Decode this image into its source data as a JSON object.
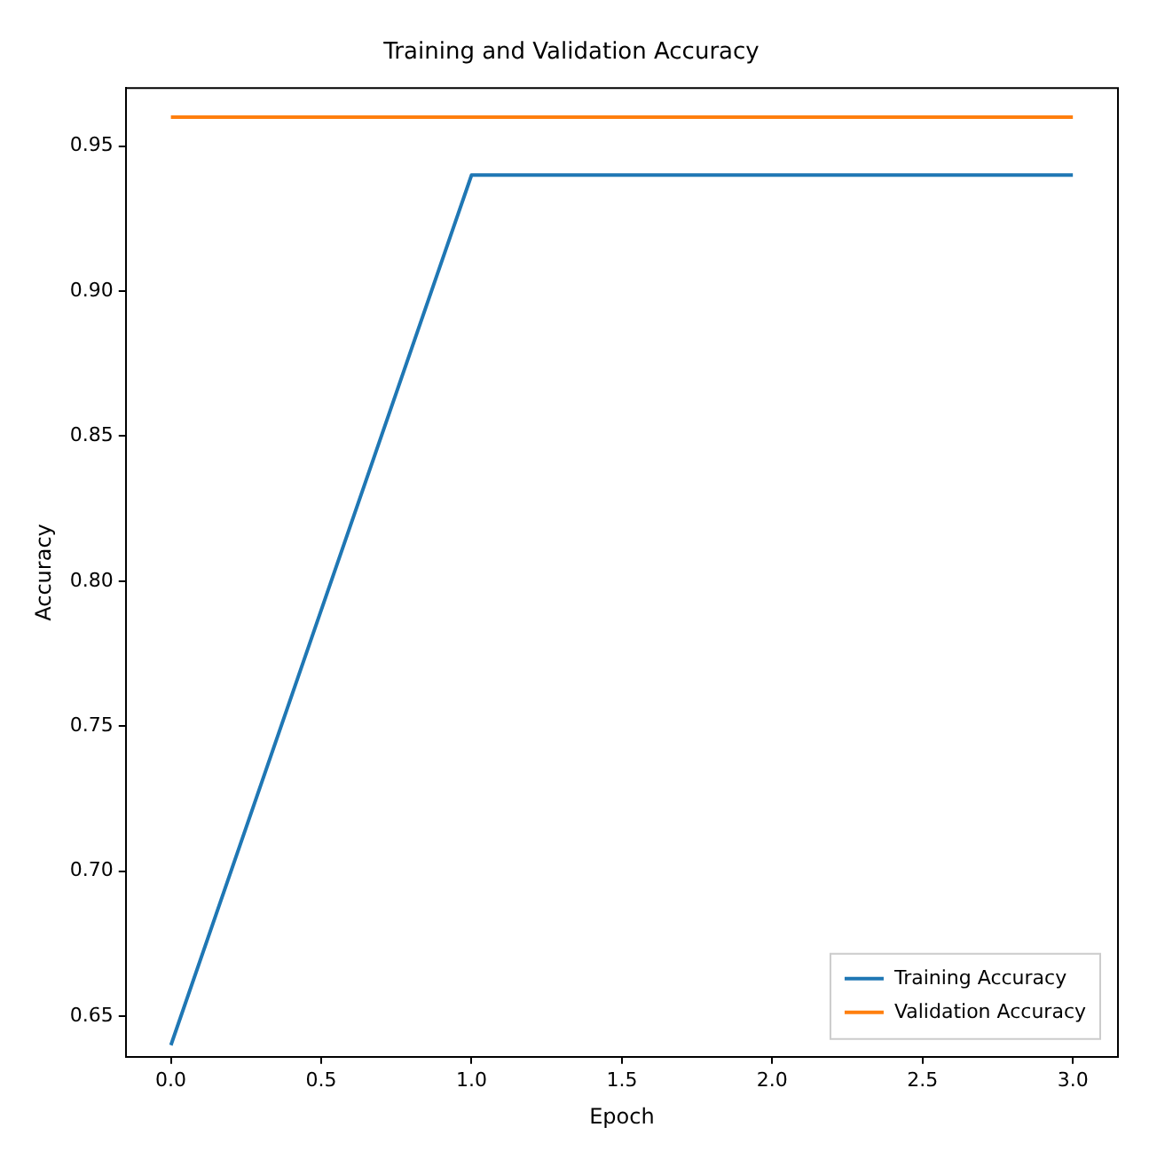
{
  "chart_data": {
    "type": "line",
    "title": "Training and Validation Accuracy",
    "xlabel": "Epoch",
    "ylabel": "Accuracy",
    "x": [
      0,
      1,
      2,
      3
    ],
    "series": [
      {
        "name": "Training Accuracy",
        "color": "#1f77b4",
        "values": [
          0.64,
          0.94,
          0.94,
          0.94
        ]
      },
      {
        "name": "Validation Accuracy",
        "color": "#ff7f0e",
        "values": [
          0.96,
          0.96,
          0.96,
          0.96
        ]
      }
    ],
    "xlim": [
      -0.15,
      3.15
    ],
    "xticks": [
      {
        "value": 0,
        "label": "0.0"
      },
      0.5,
      {
        "value": 1,
        "label": "1.0"
      },
      1.5,
      {
        "value": 2,
        "label": "2.0"
      },
      2.5,
      {
        "value": 3,
        "label": "3.0"
      }
    ],
    "ylim": [
      0.636,
      0.97
    ],
    "yticks": [
      0.65,
      {
        "value": 0.7,
        "label": "0.70"
      },
      0.75,
      {
        "value": 0.8,
        "label": "0.80"
      },
      0.85,
      {
        "value": 0.9,
        "label": "0.90"
      },
      0.95
    ],
    "grid": false,
    "legend": "bottom right",
    "marker": "none",
    "line_style": "solid"
  }
}
